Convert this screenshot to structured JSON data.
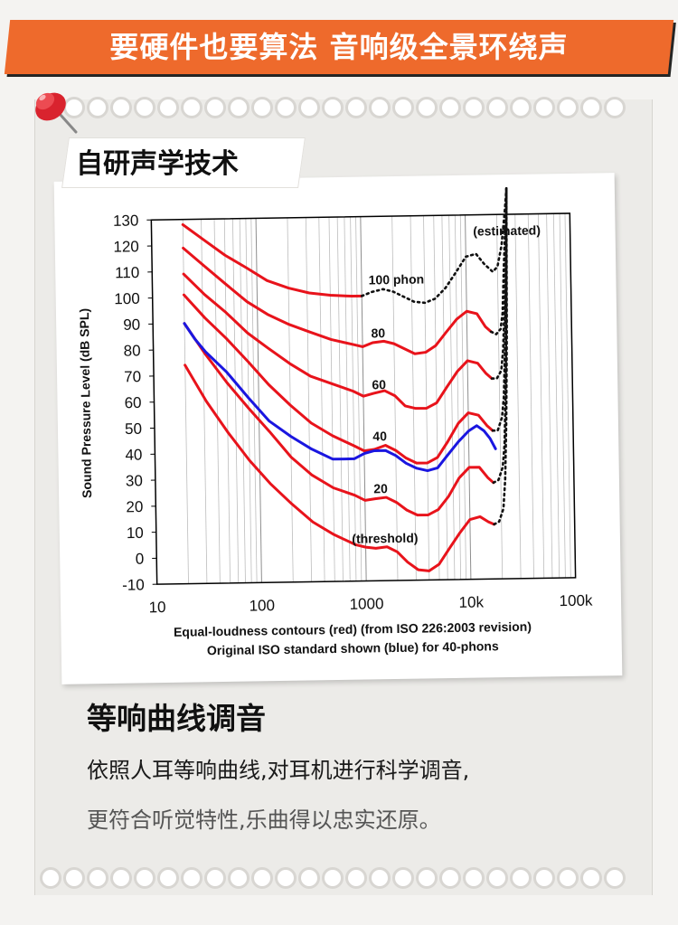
{
  "banner": {
    "title": "要硬件也要算法  音响级全景环绕声"
  },
  "label": {
    "text": "自研声学技术"
  },
  "section": {
    "title": "等响曲线调音",
    "line1": "依照人耳等响曲线,对耳机进行科学调音,",
    "line2": "更符合听觉特性,乐曲得以忠实还原。"
  },
  "colors": {
    "banner": "#ee6a2c",
    "red_curves": "#e8131b",
    "blue_curve": "#1a16e0"
  },
  "icons": [
    "pushpin-icon"
  ],
  "chart_data": {
    "type": "line",
    "xscale": "log",
    "xlim": [
      10,
      100000
    ],
    "ylim": [
      -10,
      130
    ],
    "grid": true,
    "xticks": [
      "10",
      "100",
      "1000",
      "10k",
      "100k"
    ],
    "yticks": [
      "130",
      "120",
      "110",
      "100",
      "90",
      "80",
      "70",
      "60",
      "50",
      "40",
      "30",
      "20",
      "10",
      "0",
      "-10"
    ],
    "ylabel": "Sound Pressure Level (dB SPL)",
    "xlabel": "Equal-loudness contours (red) (from ISO 226:2003 revision)",
    "xlabel2": "Original ISO standard shown (blue) for 40-phons",
    "annotations": [
      "(estimated)",
      "100 phon",
      "80",
      "60",
      "40",
      "20",
      "(threshold)"
    ],
    "series": [
      {
        "name": "100 phon",
        "x": [
          20,
          31.5,
          50,
          80,
          125,
          200,
          315,
          500,
          800,
          1000
        ],
        "y": [
          128,
          122,
          116,
          111,
          106,
          103,
          101,
          100,
          99.5,
          99.5
        ]
      },
      {
        "name": "100 phon",
        "style": "dotted",
        "x": [
          1000,
          1250,
          1600,
          2000,
          2500,
          3150,
          4000,
          5000,
          6300,
          8000,
          10000,
          12500,
          15000,
          18000,
          20000,
          22000,
          23000,
          24000,
          25000
        ],
        "y": [
          99.5,
          101,
          102,
          101,
          99,
          97,
          96.5,
          98,
          102,
          108,
          114,
          115,
          111,
          108,
          110,
          118,
          125,
          132,
          140
        ]
      },
      {
        "name": "80",
        "x": [
          20,
          31.5,
          50,
          80,
          125,
          200,
          315,
          500,
          800,
          1000,
          1250,
          1600,
          2000,
          2500,
          3150,
          4000,
          5000,
          6300,
          8000,
          10000,
          12500,
          15000,
          17000
        ],
        "y": [
          119,
          112,
          105,
          98,
          93,
          89,
          86,
          83,
          81,
          80,
          81.5,
          82,
          81,
          79,
          77,
          77.5,
          80,
          85,
          90,
          93,
          92,
          87,
          85
        ]
      },
      {
        "name": "60",
        "x": [
          20,
          31.5,
          50,
          80,
          125,
          200,
          315,
          500,
          800,
          1000,
          1250,
          1600,
          2000,
          2500,
          3150,
          4000,
          5000,
          6300,
          8000,
          10000,
          12500,
          15000,
          17000
        ],
        "y": [
          109,
          101,
          94,
          86,
          80,
          74,
          69,
          66,
          63,
          61,
          62,
          63,
          61,
          57,
          56,
          56,
          58,
          64,
          70,
          74,
          73,
          69,
          67
        ]
      },
      {
        "name": "40",
        "x": [
          20,
          31.5,
          50,
          80,
          125,
          200,
          315,
          500,
          800,
          1000,
          1250,
          1600,
          2000,
          2500,
          3150,
          4000,
          5000,
          6300,
          8000,
          10000,
          12500,
          15000,
          17000
        ],
        "y": [
          101,
          92,
          84,
          75,
          66,
          58,
          51,
          46,
          42,
          40,
          40.5,
          42,
          40,
          37,
          35,
          35,
          37,
          43,
          50,
          54,
          53,
          49,
          47
        ]
      },
      {
        "name": "20",
        "x": [
          20,
          31.5,
          50,
          80,
          125,
          200,
          315,
          500,
          800,
          1000,
          1250,
          1600,
          2000,
          2500,
          3150,
          4000,
          5000,
          6300,
          8000,
          10000,
          12500,
          15000,
          17000
        ],
        "y": [
          90,
          78,
          67,
          57,
          48,
          38,
          31,
          26,
          23,
          21,
          21.5,
          22,
          20,
          17,
          15,
          15,
          17,
          22,
          29,
          33,
          33,
          29,
          27
        ]
      },
      {
        "name": "(threshold)",
        "x": [
          20,
          31.5,
          50,
          80,
          125,
          200,
          315,
          500,
          800,
          1000,
          1250,
          1600,
          2000,
          2500,
          3150,
          4000,
          5000,
          6300,
          8000,
          10000,
          12500,
          15000,
          17000
        ],
        "y": [
          74,
          60,
          48,
          37,
          28,
          20,
          13,
          8,
          4,
          3,
          2.5,
          3,
          1,
          -3,
          -6,
          -6.5,
          -4,
          2,
          8,
          13,
          14,
          12,
          11
        ]
      },
      {
        "name": "40 (original ISO)",
        "x": [
          20,
          25,
          31.5,
          50,
          80,
          125,
          200,
          315,
          500,
          800,
          1000,
          1250,
          1600,
          2000,
          2500,
          3150,
          4000,
          5000,
          6300,
          8000,
          10000,
          12000,
          14000,
          16000,
          18000
        ],
        "y": [
          90,
          84,
          79,
          71,
          61,
          52,
          46,
          41,
          37,
          37,
          39,
          40,
          40,
          38,
          35,
          33,
          32,
          33,
          38,
          43,
          47,
          49,
          47,
          44,
          40
        ]
      },
      {
        "name": "80",
        "style": "dotted",
        "x": [
          17000,
          19000,
          21000,
          22000,
          23000,
          24000,
          25000
        ],
        "y": [
          85,
          84,
          86,
          92,
          110,
          125,
          140
        ]
      },
      {
        "name": "60",
        "style": "dotted",
        "x": [
          17000,
          19000,
          21000,
          22000,
          23000,
          24000,
          25000
        ],
        "y": [
          67,
          67,
          70,
          78,
          95,
          115,
          140
        ]
      },
      {
        "name": "40",
        "style": "dotted",
        "x": [
          17000,
          19000,
          21000,
          22000,
          23000,
          24000,
          25000
        ],
        "y": [
          47,
          47,
          52,
          60,
          80,
          105,
          140
        ]
      },
      {
        "name": "20",
        "style": "dotted",
        "x": [
          17000,
          19000,
          21000,
          22000,
          23000,
          24000,
          25000
        ],
        "y": [
          27,
          28,
          33,
          42,
          65,
          95,
          140
        ]
      },
      {
        "name": "(threshold)",
        "style": "dotted",
        "x": [
          17000,
          19000,
          21000,
          22000,
          23000,
          24000,
          25000
        ],
        "y": [
          11,
          12,
          17,
          28,
          50,
          85,
          140
        ]
      }
    ]
  }
}
